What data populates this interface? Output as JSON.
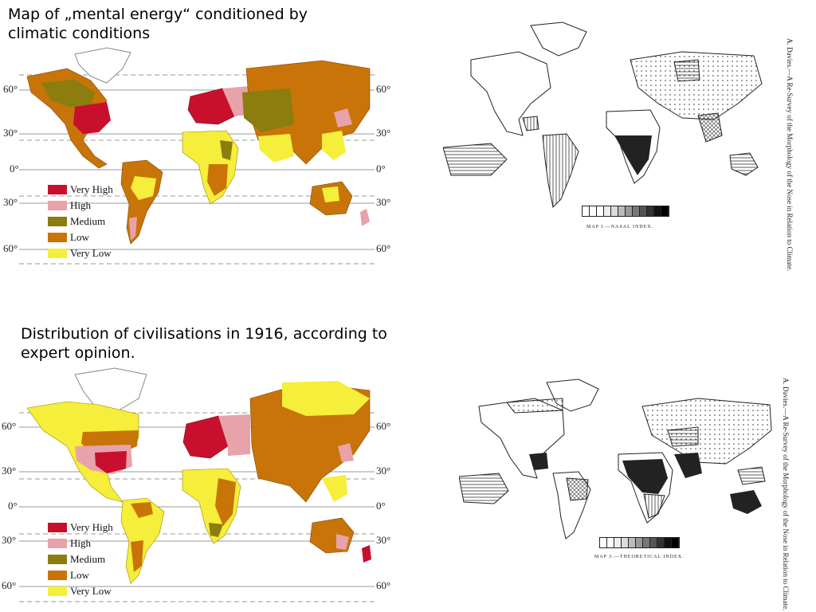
{
  "titles": {
    "map1": "Map of „mental energy“ conditioned by climatic conditions",
    "map2": "Distribution of civilisations in 1916, according to expert opinion."
  },
  "latitude_labels": {
    "lat60n": "60°",
    "lat30n": "30°",
    "lat0": "0°",
    "lat30s": "30°",
    "lat60s": "60°"
  },
  "legend": [
    {
      "label": "Very High",
      "color": "#c8102e"
    },
    {
      "label": "High",
      "color": "#e8a2aa"
    },
    {
      "label": "Medium",
      "color": "#8b7d0e"
    },
    {
      "label": "Low",
      "color": "#c87408"
    },
    {
      "label": "Very Low",
      "color": "#f5ee3a"
    }
  ],
  "scans": {
    "scan1_side": "A. Davies.—A Re-Survey of the Morphology of the Nose in Relation to Climate.",
    "scan1_caption": "MAP I.—NASAL INDEX.",
    "scan2_side": "A. Davies.—A Re-Survey of the Morphology of the Nose in Relation to Climate.",
    "scan2_caption": "MAP 3.—THEORETICAL INDEX."
  }
}
